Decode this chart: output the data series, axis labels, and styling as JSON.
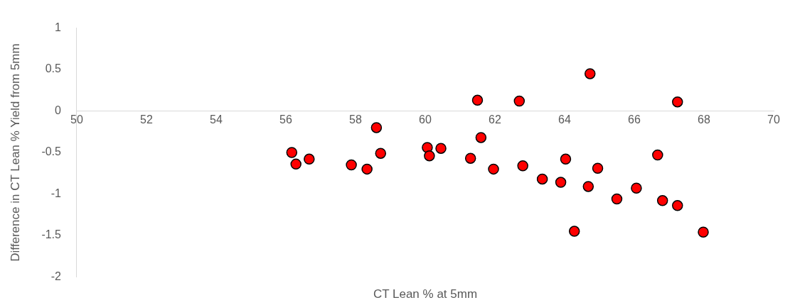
{
  "chart_data": {
    "type": "scatter",
    "xlabel": "CT Lean % at 5mm",
    "ylabel": "Difference in CT Lean % Yield from 5mm",
    "x": [
      56.17,
      56.29,
      56.67,
      57.88,
      58.33,
      58.6,
      58.72,
      60.06,
      60.12,
      60.45,
      61.3,
      61.5,
      61.6,
      61.96,
      62.7,
      62.8,
      63.36,
      63.89,
      64.03,
      64.28,
      64.73,
      64.68,
      64.95,
      65.5,
      66.06,
      66.67,
      66.81,
      67.24,
      67.24,
      67.98
    ],
    "series": [
      {
        "color": "#ff0000",
        "values": [
          -0.5,
          -0.64,
          -0.58,
          -0.65,
          -0.7,
          -0.2,
          -0.51,
          -0.44,
          -0.54,
          -0.45,
          -0.57,
          0.13,
          -0.32,
          -0.7,
          0.12,
          -0.66,
          -0.82,
          -0.86,
          -0.58,
          -1.45,
          0.45,
          -0.91,
          -0.69,
          -1.06,
          -0.93,
          -0.53,
          -1.08,
          -1.14,
          0.11,
          -1.46
        ]
      }
    ],
    "xlim": [
      50,
      70
    ],
    "xticks": [
      50,
      52,
      54,
      56,
      58,
      60,
      62,
      64,
      66,
      68,
      70
    ],
    "ylim": [
      -2,
      1
    ],
    "yticks": [
      -2,
      -1.5,
      -1,
      -0.5,
      0,
      0.5,
      1
    ],
    "grid": false,
    "legend": false,
    "marker": "circle"
  }
}
